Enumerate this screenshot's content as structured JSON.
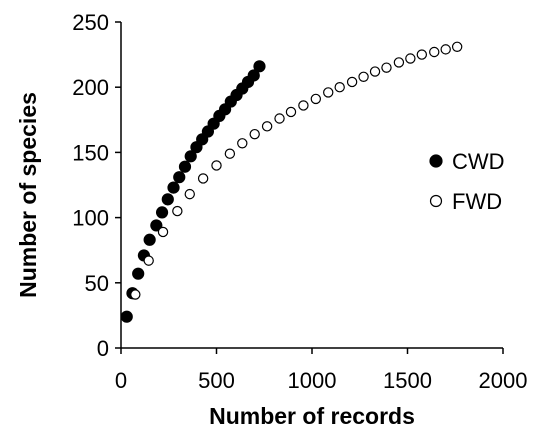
{
  "chart_data": {
    "type": "scatter",
    "title": "",
    "xlabel": "Number of records",
    "ylabel": "Number of species",
    "xlim": [
      0,
      2000
    ],
    "ylim": [
      0,
      250
    ],
    "xticks": [
      0,
      500,
      1000,
      1500,
      2000
    ],
    "yticks": [
      0,
      50,
      100,
      150,
      200,
      250
    ],
    "x_tick_labels": [
      "0",
      "500",
      "1000",
      "1500",
      "2000"
    ],
    "y_tick_labels": [
      "0",
      "50",
      "100",
      "150",
      "200",
      "250"
    ],
    "grid": false,
    "legend_position": "right",
    "series": [
      {
        "name": "CWD",
        "marker": "filled-circle",
        "color": "#000000",
        "points": [
          [
            30,
            24
          ],
          [
            60,
            42
          ],
          [
            90,
            57
          ],
          [
            120,
            71
          ],
          [
            150,
            83
          ],
          [
            185,
            94
          ],
          [
            215,
            104
          ],
          [
            245,
            114
          ],
          [
            275,
            123
          ],
          [
            305,
            131
          ],
          [
            335,
            139
          ],
          [
            365,
            147
          ],
          [
            395,
            154
          ],
          [
            425,
            160
          ],
          [
            455,
            166
          ],
          [
            485,
            172
          ],
          [
            515,
            178
          ],
          [
            545,
            183
          ],
          [
            575,
            189
          ],
          [
            605,
            194
          ],
          [
            635,
            199
          ],
          [
            665,
            204
          ],
          [
            695,
            209
          ],
          [
            725,
            216
          ]
        ]
      },
      {
        "name": "FWD",
        "marker": "open-circle",
        "color": "#000000",
        "points": [
          [
            75,
            41
          ],
          [
            145,
            67
          ],
          [
            220,
            89
          ],
          [
            295,
            105
          ],
          [
            360,
            118
          ],
          [
            430,
            130
          ],
          [
            500,
            140
          ],
          [
            570,
            149
          ],
          [
            635,
            157
          ],
          [
            700,
            164
          ],
          [
            765,
            170
          ],
          [
            830,
            176
          ],
          [
            890,
            181
          ],
          [
            955,
            186
          ],
          [
            1020,
            191
          ],
          [
            1085,
            196
          ],
          [
            1145,
            200
          ],
          [
            1210,
            204
          ],
          [
            1270,
            208
          ],
          [
            1330,
            212
          ],
          [
            1390,
            215
          ],
          [
            1455,
            219
          ],
          [
            1515,
            222
          ],
          [
            1575,
            225
          ],
          [
            1640,
            227
          ],
          [
            1700,
            229
          ],
          [
            1760,
            231
          ]
        ]
      }
    ]
  }
}
